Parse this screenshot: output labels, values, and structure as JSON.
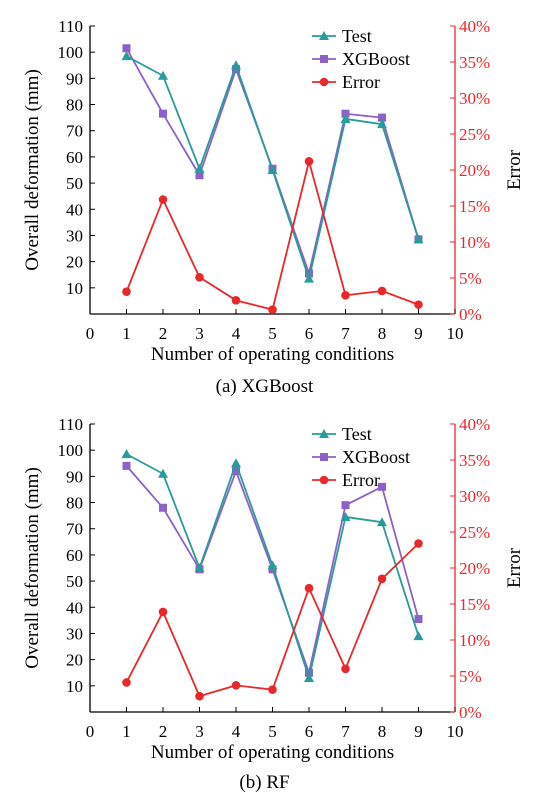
{
  "colors": {
    "test": "#2a9b9b",
    "xgboost": "#8c62c8",
    "error": "#e8282b",
    "error_axis": "#e8282b",
    "axis": "#000000"
  },
  "chart_data": [
    {
      "type": "line",
      "caption": "(a) XGBoost",
      "xlabel": "Number of operating conditions",
      "ylabel": "Overall deformation (mm)",
      "y2label": "Error",
      "xlim": [
        0,
        10
      ],
      "ylim": [
        0,
        110
      ],
      "y2lim": [
        0,
        40
      ],
      "x_ticks": [
        "0",
        "1",
        "2",
        "3",
        "4",
        "5",
        "6",
        "7",
        "8",
        "9",
        "10"
      ],
      "y_ticks": [
        "10",
        "20",
        "30",
        "40",
        "50",
        "60",
        "70",
        "80",
        "90",
        "100",
        "110"
      ],
      "y2_ticks": [
        "0%",
        "5%",
        "10%",
        "15%",
        "20%",
        "25%",
        "30%",
        "35%",
        "40%"
      ],
      "legend_position": "top-right",
      "x": [
        1,
        2,
        3,
        4,
        5,
        6,
        7,
        8,
        9
      ],
      "series": [
        {
          "name": "Test",
          "key": "test",
          "axis": "left",
          "marker": "triangle",
          "values": [
            98.5,
            91,
            55.5,
            95,
            55,
            13.5,
            74.5,
            72.5,
            28.5
          ]
        },
        {
          "name": "XGBoost",
          "key": "xgboost",
          "axis": "left",
          "marker": "square",
          "values": [
            101.5,
            76.5,
            53,
            93.5,
            55.5,
            15.5,
            76.5,
            75,
            28.5
          ]
        },
        {
          "name": "Error",
          "key": "error",
          "axis": "right",
          "marker": "circle",
          "values": [
            3.1,
            15.9,
            5.1,
            1.9,
            0.6,
            21.2,
            2.6,
            3.2,
            1.3
          ]
        }
      ]
    },
    {
      "type": "line",
      "caption": "(b) RF",
      "xlabel": "Number of operating conditions",
      "ylabel": "Overall deformation (mm)",
      "y2label": "Error",
      "xlim": [
        0,
        10
      ],
      "ylim": [
        0,
        110
      ],
      "y2lim": [
        0,
        40
      ],
      "x_ticks": [
        "0",
        "1",
        "2",
        "3",
        "4",
        "5",
        "6",
        "7",
        "8",
        "9",
        "10"
      ],
      "y_ticks": [
        "10",
        "20",
        "30",
        "40",
        "50",
        "60",
        "70",
        "80",
        "90",
        "100",
        "110"
      ],
      "y2_ticks": [
        "0%",
        "5%",
        "10%",
        "15%",
        "20%",
        "25%",
        "30%",
        "35%",
        "40%"
      ],
      "legend_position": "top-right",
      "x": [
        1,
        2,
        3,
        4,
        5,
        6,
        7,
        8,
        9
      ],
      "series": [
        {
          "name": "Test",
          "key": "test",
          "axis": "left",
          "marker": "triangle",
          "values": [
            98.5,
            91,
            55,
            95,
            56,
            13,
            74.5,
            72.5,
            29
          ]
        },
        {
          "name": "XGBoost",
          "key": "xgboost",
          "axis": "left",
          "marker": "square",
          "values": [
            94,
            78,
            54.5,
            92,
            54.5,
            15,
            79,
            86,
            35.5
          ]
        },
        {
          "name": "Error",
          "key": "error",
          "axis": "right",
          "marker": "circle",
          "values": [
            4.1,
            13.9,
            2.2,
            3.7,
            3.1,
            17.2,
            6.0,
            18.5,
            23.4
          ]
        }
      ]
    }
  ]
}
